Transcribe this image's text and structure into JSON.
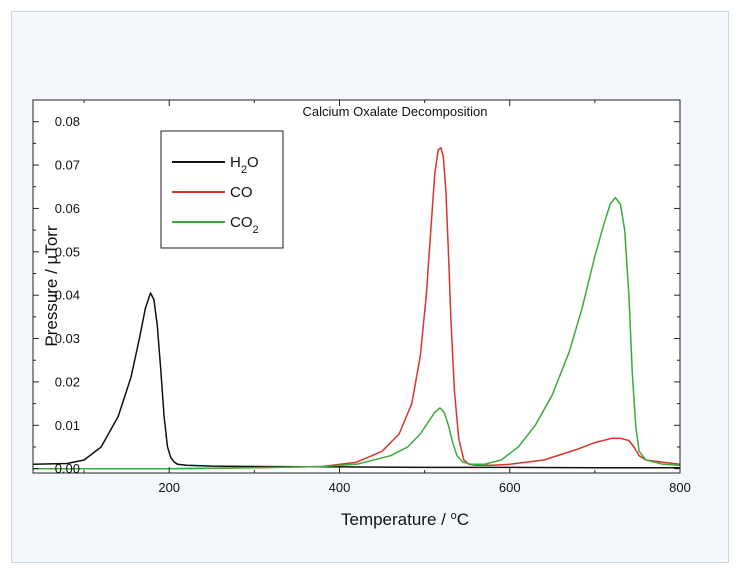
{
  "chart_data": {
    "type": "line",
    "title": "Calcium Oxalate Decomposition",
    "xlabel": {
      "pre": "Temperature / ",
      "sup": "o",
      "post": "C"
    },
    "ylabel": "Pressure / µTorr",
    "xlim": [
      40,
      800
    ],
    "ylim": [
      -0.001,
      0.085
    ],
    "x_ticks": [
      200,
      400,
      600,
      800
    ],
    "y_ticks": [
      0.0,
      0.01,
      0.02,
      0.03,
      0.04,
      0.05,
      0.06,
      0.07,
      0.08
    ],
    "y_tick_labels": [
      "0.00",
      "0.01",
      "0.02",
      "0.03",
      "0.04",
      "0.05",
      "0.06",
      "0.07",
      "0.08"
    ],
    "legend_position": "top-left",
    "series": [
      {
        "name": "H2O",
        "legend": {
          "base": "H",
          "sub": "2",
          "rest": "O"
        },
        "color": "#111111",
        "x": [
          40,
          80,
          100,
          120,
          140,
          155,
          165,
          172,
          178,
          182,
          186,
          190,
          194,
          198,
          202,
          206,
          210,
          220,
          250,
          300,
          400,
          500,
          600,
          700,
          800
        ],
        "y": [
          0.001,
          0.0012,
          0.002,
          0.005,
          0.012,
          0.021,
          0.03,
          0.037,
          0.0405,
          0.039,
          0.033,
          0.023,
          0.012,
          0.005,
          0.0025,
          0.0015,
          0.001,
          0.0008,
          0.0006,
          0.0005,
          0.0004,
          0.0003,
          0.0003,
          0.0002,
          0.0002
        ]
      },
      {
        "name": "CO",
        "legend": {
          "base": "CO",
          "sub": "",
          "rest": ""
        },
        "color": "#d9342b",
        "x": [
          40,
          100,
          200,
          300,
          380,
          420,
          450,
          470,
          485,
          495,
          502,
          508,
          512,
          516,
          519,
          522,
          525,
          528,
          531,
          535,
          540,
          546,
          552,
          560,
          580,
          600,
          640,
          680,
          700,
          720,
          730,
          740,
          746,
          752,
          760,
          780,
          800
        ],
        "y": [
          0.0,
          0.0,
          0.0,
          0.0002,
          0.0005,
          0.0015,
          0.004,
          0.008,
          0.015,
          0.026,
          0.04,
          0.057,
          0.068,
          0.0735,
          0.074,
          0.072,
          0.064,
          0.05,
          0.034,
          0.018,
          0.007,
          0.002,
          0.001,
          0.0008,
          0.0008,
          0.001,
          0.002,
          0.0045,
          0.006,
          0.007,
          0.007,
          0.0065,
          0.005,
          0.003,
          0.002,
          0.0015,
          0.001
        ]
      },
      {
        "name": "CO2",
        "legend": {
          "base": "CO",
          "sub": "2",
          "rest": ""
        },
        "color": "#3aaa3a",
        "x": [
          40,
          200,
          300,
          380,
          420,
          460,
          480,
          495,
          505,
          512,
          518,
          523,
          528,
          533,
          538,
          545,
          555,
          570,
          590,
          610,
          630,
          650,
          670,
          685,
          700,
          710,
          718,
          724,
          730,
          735,
          740,
          744,
          748,
          752,
          760,
          780,
          800
        ],
        "y": [
          0.0,
          0.0,
          0.0002,
          0.0005,
          0.001,
          0.003,
          0.005,
          0.008,
          0.011,
          0.013,
          0.014,
          0.013,
          0.01,
          0.006,
          0.003,
          0.0015,
          0.001,
          0.001,
          0.002,
          0.005,
          0.01,
          0.017,
          0.027,
          0.037,
          0.049,
          0.056,
          0.061,
          0.0625,
          0.061,
          0.055,
          0.04,
          0.022,
          0.01,
          0.004,
          0.002,
          0.001,
          0.0008
        ]
      }
    ]
  }
}
